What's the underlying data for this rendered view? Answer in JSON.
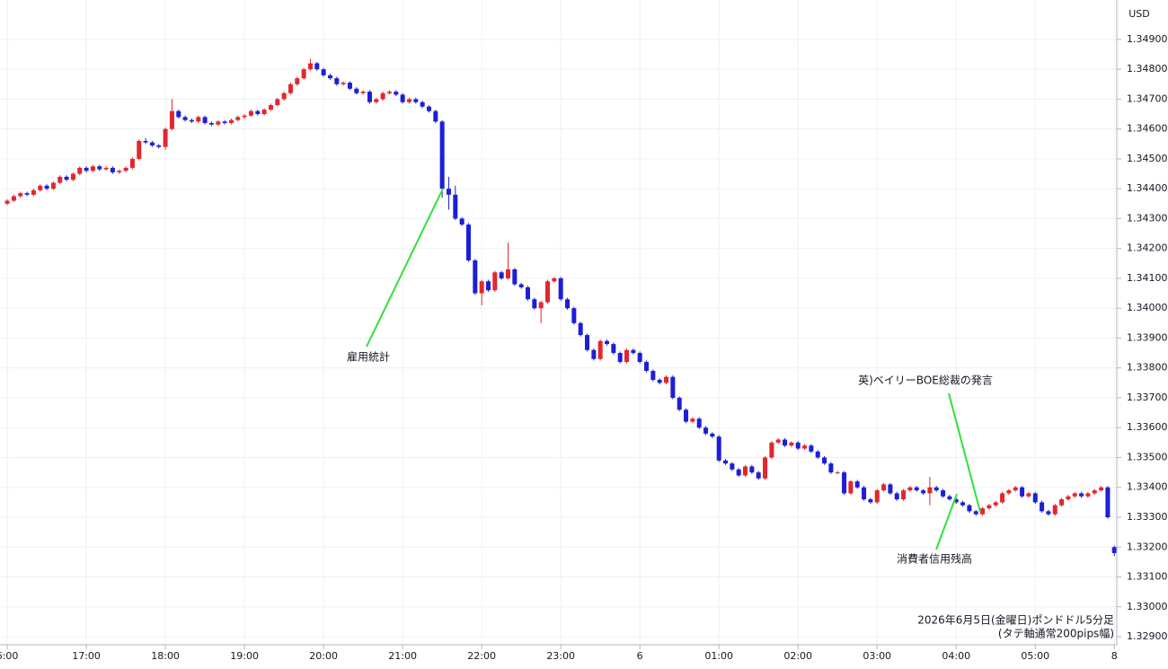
{
  "chart_data": {
    "type": "candlestick",
    "currency": "USD",
    "up_color": "#e3262c",
    "down_color": "#1c1fd6",
    "grid": true,
    "annotations": [
      "雇用統計",
      "英)ベイリーBOE総裁の発言",
      "消費者信用残高"
    ],
    "footer": [
      "2026年6月5日(金曜日)ポンドドル5分足",
      "(タテ軸通常200pips幅)"
    ],
    "xlim": [
      -5.5,
      840.5
    ],
    "xticks": [
      {
        "value": 0,
        "label": "6:00"
      },
      {
        "value": 60,
        "label": "17:00"
      },
      {
        "value": 120,
        "label": "18:00"
      },
      {
        "value": 180,
        "label": "19:00"
      },
      {
        "value": 240,
        "label": "20:00"
      },
      {
        "value": 300,
        "label": "21:00"
      },
      {
        "value": 360,
        "label": "22:00"
      },
      {
        "value": 420,
        "label": "23:00"
      },
      {
        "value": 480,
        "label": "6"
      },
      {
        "value": 540,
        "label": "01:00"
      },
      {
        "value": 600,
        "label": "02:00"
      },
      {
        "value": 660,
        "label": "03:00"
      },
      {
        "value": 720,
        "label": "04:00"
      },
      {
        "value": 780,
        "label": "05:00"
      },
      {
        "value": 840,
        "label": "8"
      }
    ],
    "ylim": [
      1.32873,
      1.35032
    ],
    "yticks": [
      {
        "value": 1.349,
        "label": "1.34900"
      },
      {
        "value": 1.348,
        "label": "1.34800"
      },
      {
        "value": 1.347,
        "label": "1.34700"
      },
      {
        "value": 1.346,
        "label": "1.34600"
      },
      {
        "value": 1.345,
        "label": "1.34500"
      },
      {
        "value": 1.344,
        "label": "1.34400"
      },
      {
        "value": 1.343,
        "label": "1.34300"
      },
      {
        "value": 1.342,
        "label": "1.34200"
      },
      {
        "value": 1.341,
        "label": "1.34100"
      },
      {
        "value": 1.34,
        "label": "1.34000"
      },
      {
        "value": 1.339,
        "label": "1.33900"
      },
      {
        "value": 1.338,
        "label": "1.33800"
      },
      {
        "value": 1.337,
        "label": "1.33700"
      },
      {
        "value": 1.336,
        "label": "1.33600"
      },
      {
        "value": 1.335,
        "label": "1.33500"
      },
      {
        "value": 1.334,
        "label": "1.33400"
      },
      {
        "value": 1.333,
        "label": "1.33300"
      },
      {
        "value": 1.332,
        "label": "1.33200"
      },
      {
        "value": 1.331,
        "label": "1.33100"
      },
      {
        "value": 1.33,
        "label": "1.33000"
      },
      {
        "value": 1.329,
        "label": "1.32900"
      }
    ],
    "x": [
      0,
      5,
      10,
      15,
      20,
      25,
      30,
      35,
      40,
      45,
      50,
      55,
      60,
      65,
      70,
      75,
      80,
      85,
      90,
      95,
      100,
      105,
      110,
      115,
      120,
      125,
      130,
      135,
      140,
      145,
      150,
      155,
      160,
      165,
      170,
      175,
      180,
      185,
      190,
      195,
      200,
      205,
      210,
      215,
      220,
      225,
      230,
      235,
      240,
      245,
      250,
      255,
      260,
      265,
      270,
      275,
      280,
      285,
      290,
      295,
      300,
      305,
      310,
      315,
      320,
      325,
      330,
      335,
      340,
      345,
      350,
      355,
      360,
      365,
      370,
      375,
      380,
      385,
      390,
      395,
      400,
      405,
      410,
      415,
      420,
      425,
      430,
      435,
      440,
      445,
      450,
      455,
      460,
      465,
      470,
      475,
      480,
      485,
      490,
      495,
      500,
      505,
      510,
      515,
      520,
      525,
      530,
      535,
      540,
      545,
      550,
      555,
      560,
      565,
      570,
      575,
      580,
      585,
      590,
      595,
      600,
      605,
      610,
      615,
      620,
      625,
      630,
      635,
      640,
      645,
      650,
      655,
      660,
      665,
      670,
      675,
      680,
      685,
      690,
      695,
      700,
      705,
      710,
      715,
      720,
      725,
      730,
      735,
      740,
      745,
      750,
      755,
      760,
      765,
      770,
      775,
      780,
      785,
      790,
      795,
      800,
      805,
      810,
      815,
      820,
      825,
      830,
      835,
      840
    ],
    "open": [
      1.3435,
      1.3436,
      1.34375,
      1.34385,
      1.3438,
      1.34395,
      1.3441,
      1.344,
      1.3442,
      1.3444,
      1.3443,
      1.3445,
      1.3447,
      1.3446,
      1.34475,
      1.34465,
      1.3447,
      1.34455,
      1.3446,
      1.3447,
      1.345,
      1.3456,
      1.34555,
      1.34545,
      1.3454,
      1.346,
      1.3466,
      1.3464,
      1.3463,
      1.34625,
      1.3464,
      1.3462,
      1.34615,
      1.34625,
      1.3462,
      1.3463,
      1.3464,
      1.34645,
      1.3466,
      1.3465,
      1.34665,
      1.3468,
      1.347,
      1.3472,
      1.3475,
      1.3477,
      1.348,
      1.3482,
      1.348,
      1.3478,
      1.3477,
      1.3475,
      1.34755,
      1.34735,
      1.3472,
      1.34725,
      1.3469,
      1.347,
      1.3472,
      1.34725,
      1.34715,
      1.3469,
      1.347,
      1.3469,
      1.34675,
      1.3466,
      1.34625,
      1.344,
      1.3438,
      1.343,
      1.3428,
      1.3416,
      1.3405,
      1.3409,
      1.3406,
      1.3412,
      1.341,
      1.3413,
      1.3408,
      1.3407,
      1.3403,
      1.34,
      1.3402,
      1.3409,
      1.341,
      1.3403,
      1.34,
      1.3395,
      1.3391,
      1.3386,
      1.3383,
      1.3389,
      1.3388,
      1.3385,
      1.3382,
      1.3386,
      1.3385,
      1.3382,
      1.3379,
      1.3376,
      1.3375,
      1.3377,
      1.337,
      1.3366,
      1.3362,
      1.3363,
      1.336,
      1.3358,
      1.3357,
      1.3349,
      1.3348,
      1.3346,
      1.3344,
      1.3347,
      1.3345,
      1.3343,
      1.335,
      1.3355,
      1.3356,
      1.3354,
      1.3355,
      1.3353,
      1.3354,
      1.3352,
      1.335,
      1.3348,
      1.3345,
      1.3345,
      1.3338,
      1.3342,
      1.334,
      1.3336,
      1.3335,
      1.3339,
      1.3341,
      1.3338,
      1.3336,
      1.3339,
      1.334,
      1.3339,
      1.3338,
      1.334,
      1.3339,
      1.3337,
      1.3336,
      1.3335,
      1.3334,
      1.3332,
      1.3331,
      1.3333,
      1.3334,
      1.3335,
      1.3338,
      1.3339,
      1.334,
      1.3337,
      1.3338,
      1.3335,
      1.3332,
      1.3331,
      1.3334,
      1.3336,
      1.3337,
      1.3338,
      1.3337,
      1.3338,
      1.3339,
      1.334,
      1.332
    ],
    "high": [
      1.34365,
      1.3438,
      1.3439,
      1.3439,
      1.344,
      1.34415,
      1.34415,
      1.34425,
      1.34445,
      1.34445,
      1.34455,
      1.34475,
      1.34475,
      1.3448,
      1.3448,
      1.34475,
      1.34475,
      1.34465,
      1.34475,
      1.34505,
      1.34565,
      1.3457,
      1.3456,
      1.3455,
      1.34605,
      1.347,
      1.34665,
      1.34645,
      1.34635,
      1.34645,
      1.34645,
      1.34625,
      1.3463,
      1.3463,
      1.34635,
      1.34645,
      1.3465,
      1.34665,
      1.34665,
      1.3467,
      1.34685,
      1.34705,
      1.34725,
      1.34755,
      1.34775,
      1.34805,
      1.34835,
      1.34825,
      1.34805,
      1.34785,
      1.34775,
      1.3476,
      1.3476,
      1.3474,
      1.3473,
      1.3473,
      1.34705,
      1.34725,
      1.3473,
      1.3473,
      1.3472,
      1.34705,
      1.34705,
      1.34695,
      1.3468,
      1.34665,
      1.3463,
      1.3444,
      1.3441,
      1.34305,
      1.34285,
      1.34165,
      1.34095,
      1.34095,
      1.34125,
      1.34125,
      1.3422,
      1.34135,
      1.34085,
      1.34075,
      1.34035,
      1.34025,
      1.34095,
      1.34105,
      1.34105,
      1.34035,
      1.34005,
      1.33955,
      1.33915,
      1.33865,
      1.33895,
      1.33895,
      1.33885,
      1.33855,
      1.33865,
      1.33865,
      1.33855,
      1.33825,
      1.33795,
      1.33765,
      1.33775,
      1.33775,
      1.33705,
      1.33665,
      1.33635,
      1.33635,
      1.33605,
      1.33585,
      1.33575,
      1.33495,
      1.33485,
      1.33465,
      1.33475,
      1.33475,
      1.33455,
      1.33505,
      1.33555,
      1.33565,
      1.33565,
      1.33555,
      1.33555,
      1.33545,
      1.33545,
      1.33525,
      1.33505,
      1.33485,
      1.33455,
      1.33455,
      1.33425,
      1.33425,
      1.33405,
      1.33365,
      1.33395,
      1.33415,
      1.33415,
      1.33385,
      1.33395,
      1.33405,
      1.33405,
      1.33395,
      1.33435,
      1.33405,
      1.33395,
      1.33375,
      1.33365,
      1.33355,
      1.33345,
      1.33325,
      1.33335,
      1.33345,
      1.33355,
      1.33385,
      1.33395,
      1.33405,
      1.33405,
      1.33385,
      1.33385,
      1.33355,
      1.33325,
      1.33345,
      1.33365,
      1.33375,
      1.33385,
      1.33385,
      1.33385,
      1.33395,
      1.33405,
      1.33405,
      1.33205
    ],
    "low": [
      1.34345,
      1.34355,
      1.3437,
      1.34375,
      1.34375,
      1.3439,
      1.34395,
      1.34395,
      1.34415,
      1.34425,
      1.34425,
      1.34445,
      1.34455,
      1.34455,
      1.3446,
      1.3446,
      1.3445,
      1.3445,
      1.34455,
      1.34465,
      1.34495,
      1.3455,
      1.3454,
      1.34535,
      1.3453,
      1.34595,
      1.34635,
      1.34625,
      1.3462,
      1.3462,
      1.34615,
      1.3461,
      1.3461,
      1.34615,
      1.34615,
      1.34625,
      1.34635,
      1.3464,
      1.34645,
      1.34645,
      1.3466,
      1.34675,
      1.34695,
      1.34715,
      1.34745,
      1.34765,
      1.34795,
      1.34795,
      1.34775,
      1.34765,
      1.34745,
      1.34745,
      1.3473,
      1.34715,
      1.34715,
      1.34685,
      1.34685,
      1.34695,
      1.34715,
      1.3471,
      1.34685,
      1.34685,
      1.34685,
      1.3467,
      1.34655,
      1.3462,
      1.3437,
      1.3433,
      1.34295,
      1.34275,
      1.34155,
      1.34045,
      1.3401,
      1.34055,
      1.34055,
      1.34095,
      1.34095,
      1.34075,
      1.34065,
      1.34025,
      1.33995,
      1.3395,
      1.34015,
      1.34085,
      1.34025,
      1.33995,
      1.33945,
      1.33905,
      1.33855,
      1.33825,
      1.33825,
      1.33875,
      1.33845,
      1.33815,
      1.33815,
      1.33845,
      1.33815,
      1.33785,
      1.33755,
      1.33745,
      1.33745,
      1.33695,
      1.33655,
      1.33615,
      1.33615,
      1.33595,
      1.33575,
      1.33565,
      1.33485,
      1.33475,
      1.33455,
      1.33435,
      1.33435,
      1.33445,
      1.33425,
      1.33425,
      1.33495,
      1.33545,
      1.33535,
      1.33535,
      1.33525,
      1.33525,
      1.33515,
      1.33495,
      1.33475,
      1.33445,
      1.33445,
      1.33375,
      1.33375,
      1.33395,
      1.33355,
      1.33345,
      1.33345,
      1.33385,
      1.33375,
      1.33355,
      1.33355,
      1.33385,
      1.33385,
      1.33375,
      1.3334,
      1.33385,
      1.33365,
      1.33355,
      1.33345,
      1.33335,
      1.33315,
      1.33305,
      1.33305,
      1.33325,
      1.33335,
      1.33345,
      1.33375,
      1.33385,
      1.33365,
      1.33365,
      1.33345,
      1.33315,
      1.33305,
      1.33305,
      1.33335,
      1.33355,
      1.33365,
      1.33365,
      1.33365,
      1.33375,
      1.33385,
      1.33295,
      1.3317
    ],
    "close": [
      1.3436,
      1.34375,
      1.34385,
      1.3438,
      1.34395,
      1.3441,
      1.344,
      1.3442,
      1.3444,
      1.3443,
      1.3445,
      1.3447,
      1.3446,
      1.34475,
      1.34465,
      1.3447,
      1.34455,
      1.3446,
      1.3447,
      1.345,
      1.3456,
      1.34555,
      1.34545,
      1.3454,
      1.346,
      1.3466,
      1.3464,
      1.3463,
      1.34625,
      1.3464,
      1.3462,
      1.34615,
      1.34625,
      1.3462,
      1.3463,
      1.3464,
      1.34645,
      1.3466,
      1.3465,
      1.34665,
      1.3468,
      1.347,
      1.3472,
      1.3475,
      1.3477,
      1.348,
      1.3482,
      1.348,
      1.3478,
      1.3477,
      1.3475,
      1.34755,
      1.34735,
      1.3472,
      1.34725,
      1.3469,
      1.347,
      1.3472,
      1.34725,
      1.34715,
      1.3469,
      1.347,
      1.3469,
      1.34675,
      1.3466,
      1.34625,
      1.344,
      1.3438,
      1.343,
      1.3428,
      1.3416,
      1.3405,
      1.3409,
      1.3406,
      1.3412,
      1.341,
      1.3413,
      1.3408,
      1.3407,
      1.3403,
      1.34,
      1.3402,
      1.3409,
      1.341,
      1.3403,
      1.34,
      1.3395,
      1.3391,
      1.3386,
      1.3383,
      1.3389,
      1.3388,
      1.3385,
      1.3382,
      1.3386,
      1.3385,
      1.3382,
      1.3379,
      1.3376,
      1.3375,
      1.3377,
      1.337,
      1.3366,
      1.3362,
      1.3363,
      1.336,
      1.3358,
      1.3357,
      1.3349,
      1.3348,
      1.3346,
      1.3344,
      1.3347,
      1.3345,
      1.3343,
      1.335,
      1.3355,
      1.3356,
      1.3354,
      1.3355,
      1.3353,
      1.3354,
      1.3352,
      1.335,
      1.3348,
      1.3345,
      1.3345,
      1.3338,
      1.3342,
      1.334,
      1.3336,
      1.3335,
      1.3339,
      1.3341,
      1.3338,
      1.3336,
      1.3339,
      1.334,
      1.3339,
      1.3338,
      1.334,
      1.3339,
      1.3337,
      1.3336,
      1.3335,
      1.3334,
      1.3332,
      1.3331,
      1.3333,
      1.3334,
      1.3335,
      1.3338,
      1.3339,
      1.334,
      1.3337,
      1.3338,
      1.3335,
      1.3332,
      1.3331,
      1.3334,
      1.3336,
      1.3337,
      1.3338,
      1.3337,
      1.3338,
      1.3339,
      1.334,
      1.333,
      1.3318
    ]
  }
}
